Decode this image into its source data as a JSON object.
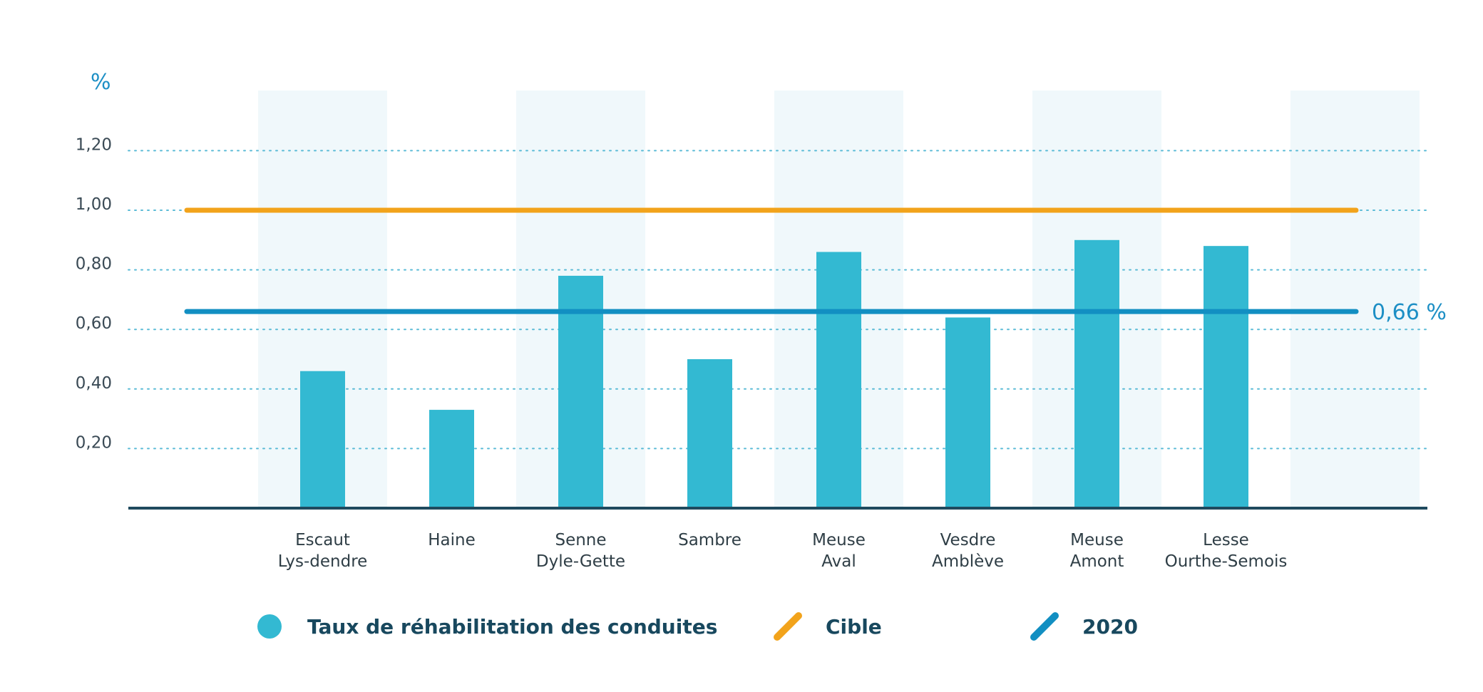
{
  "chart_data": {
    "type": "bar",
    "ylabel": "%",
    "ylim": [
      0,
      1.3
    ],
    "yticks": [
      0.2,
      0.4,
      0.6,
      0.8,
      1.0,
      1.2
    ],
    "ytick_labels": [
      "0,20",
      "0,40",
      "0,60",
      "0,80",
      "1,00",
      "1,20"
    ],
    "grid": true,
    "categories": [
      [
        "Escaut",
        "Lys-dendre"
      ],
      [
        "Haine"
      ],
      [
        "Senne",
        "Dyle-Gette"
      ],
      [
        "Sambre"
      ],
      [
        "Meuse",
        "Aval"
      ],
      [
        "Vesdre",
        "Amblève"
      ],
      [
        "Meuse",
        "Amont"
      ],
      [
        "Lesse",
        "Ourthe-Semois"
      ]
    ],
    "series": [
      {
        "name": "Taux de réhabilitation des conduites",
        "color": "#33b9d2",
        "values": [
          0.46,
          0.33,
          0.78,
          0.5,
          0.86,
          0.64,
          0.9,
          0.88
        ]
      }
    ],
    "reference_lines": [
      {
        "name": "Cible",
        "value": 1.0,
        "color": "#f2a31b",
        "label": ""
      },
      {
        "name": "2020",
        "value": 0.66,
        "color": "#128fc2",
        "label": "0,66 %"
      }
    ],
    "legend": {
      "position": "bottom"
    }
  },
  "colors": {
    "axis": "#1f4a5e",
    "grid": "#5bbbd6",
    "band": "#f0f8fb"
  }
}
